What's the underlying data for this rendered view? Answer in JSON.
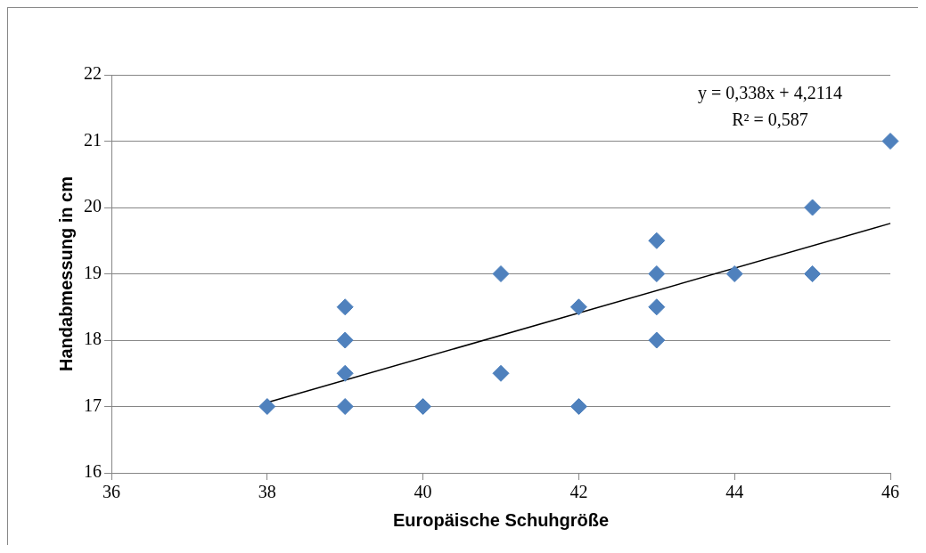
{
  "chart_data": {
    "type": "scatter",
    "xlabel": "Europäische Schuhgröße",
    "ylabel": "Handabmessung in cm",
    "series": [
      {
        "color": "#4f81bd",
        "marker": "diamond",
        "x": [
          38,
          39,
          39,
          39,
          39,
          40,
          41,
          41,
          42,
          42,
          43,
          43,
          43,
          43,
          44,
          45,
          45,
          46
        ],
        "values": [
          17,
          18.5,
          18,
          17.5,
          17,
          17,
          19,
          17.5,
          18.5,
          17,
          19.5,
          19,
          18.5,
          18,
          19,
          20,
          19,
          21
        ]
      },
      {
        "type": "line",
        "color": "#000000",
        "marker": "none",
        "x": [
          38,
          46
        ],
        "values": [
          17.06,
          19.76
        ]
      }
    ],
    "annotations": [
      "y = 0,338x + 4,2114",
      "R² = 0,587"
    ],
    "xlim": [
      36,
      46
    ],
    "xticks": [
      36,
      38,
      40,
      42,
      44,
      46
    ],
    "ylim": [
      16,
      22
    ],
    "yticks": [
      16,
      17,
      18,
      19,
      20,
      21,
      22
    ],
    "grid": "y",
    "legend": false
  }
}
